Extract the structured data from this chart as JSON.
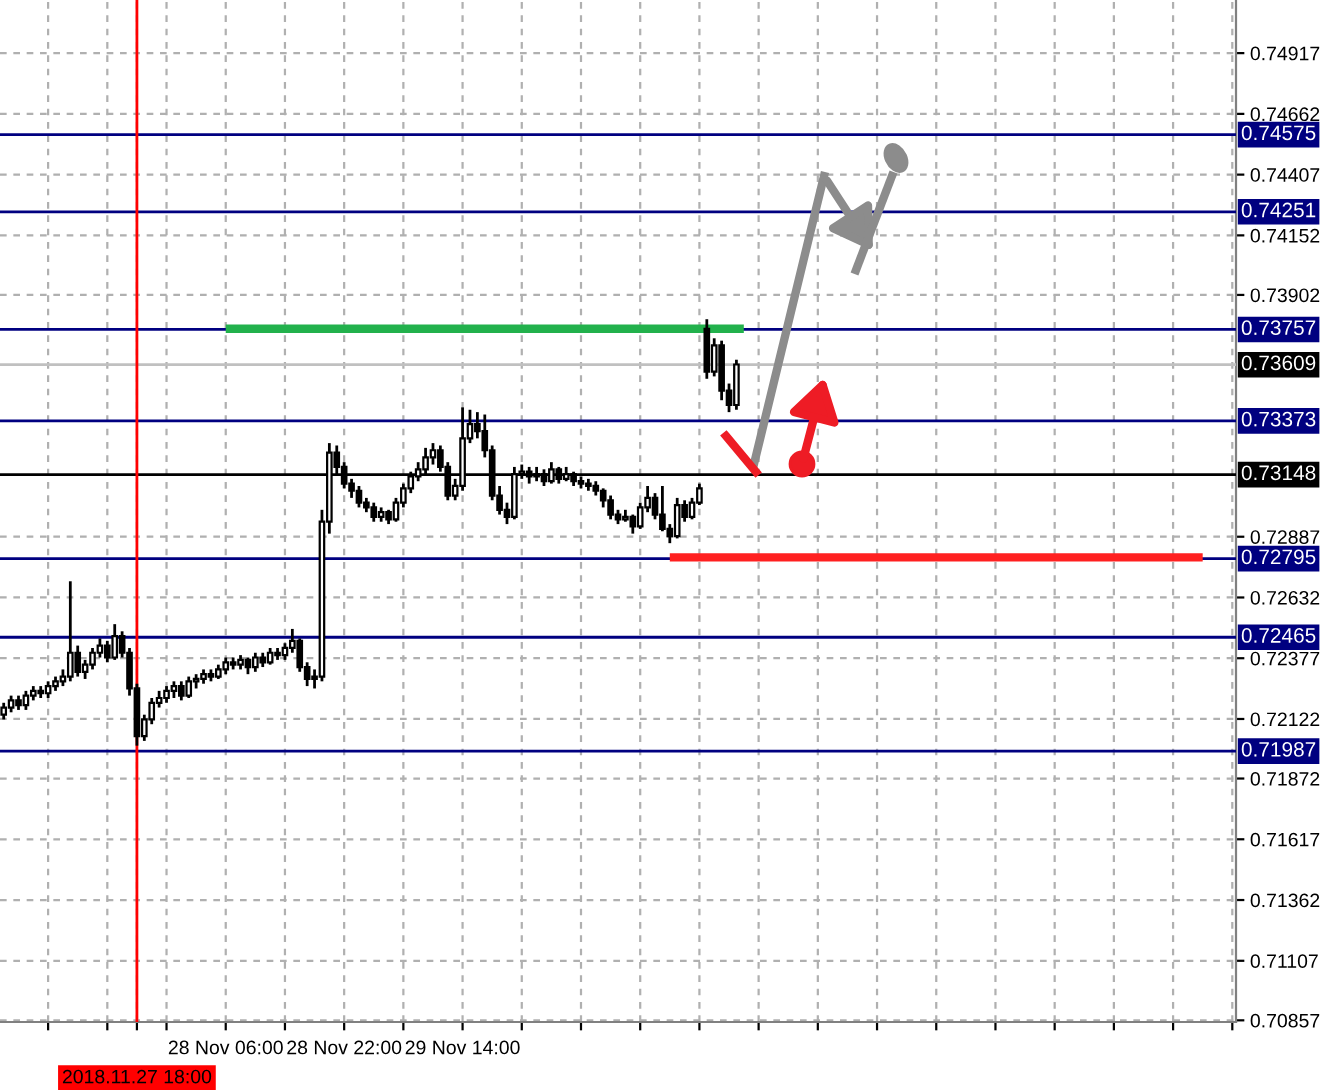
{
  "chart_data": {
    "type": "candlestick",
    "categories": [
      null,
      null,
      null,
      null,
      null,
      null,
      null,
      null,
      null,
      null,
      null,
      null,
      null,
      null,
      null,
      null,
      null,
      null,
      "2018.11.27 18:00",
      null,
      null,
      null,
      null,
      null,
      null,
      null,
      null,
      null,
      null,
      null,
      "28 Nov 06:00",
      null,
      null,
      null,
      null,
      null,
      null,
      null,
      null,
      null,
      null,
      null,
      null,
      null,
      null,
      null,
      "28 Nov 22:00",
      null,
      null,
      null,
      null,
      null,
      null,
      null,
      null,
      null,
      null,
      null,
      null,
      null,
      null,
      null,
      "29 Nov 14:00",
      null,
      null,
      null,
      null,
      null,
      null,
      null,
      null,
      null,
      null,
      null,
      null,
      null,
      null,
      null,
      null,
      null,
      null,
      null,
      null,
      null,
      null,
      null,
      null,
      null,
      null,
      null,
      null,
      null,
      null,
      null,
      null,
      null,
      null,
      null,
      null,
      null,
      null,
      null,
      null,
      null,
      null,
      null,
      null,
      null,
      null,
      null,
      null,
      null,
      null,
      null,
      null,
      null,
      null,
      null,
      null,
      null,
      null,
      null,
      null,
      null,
      null,
      null,
      null,
      null,
      null,
      null,
      null,
      null,
      null,
      null,
      null,
      null,
      null,
      null,
      null,
      null,
      null,
      null,
      null,
      null,
      null,
      null,
      null,
      null,
      null,
      null,
      null,
      null,
      null,
      null,
      null,
      null,
      null,
      null,
      null,
      null,
      null,
      null,
      null,
      null,
      null,
      null,
      null
    ],
    "ohlc": [
      [
        0.7214,
        0.7219,
        0.7212,
        0.7217
      ],
      [
        0.7217,
        0.7222,
        0.7215,
        0.722
      ],
      [
        0.722,
        0.7222,
        0.7216,
        0.7218
      ],
      [
        0.7218,
        0.7224,
        0.7216,
        0.7222
      ],
      [
        0.7222,
        0.7226,
        0.722,
        0.7224
      ],
      [
        0.7224,
        0.7226,
        0.7221,
        0.7223
      ],
      [
        0.7223,
        0.7228,
        0.7221,
        0.7226
      ],
      [
        0.7226,
        0.723,
        0.7224,
        0.7228
      ],
      [
        0.7228,
        0.7233,
        0.7226,
        0.723
      ],
      [
        0.723,
        0.727,
        0.7228,
        0.724
      ],
      [
        0.724,
        0.7243,
        0.723,
        0.7232
      ],
      [
        0.7232,
        0.7237,
        0.7229,
        0.7235
      ],
      [
        0.7235,
        0.7242,
        0.7233,
        0.724
      ],
      [
        0.724,
        0.7246,
        0.7238,
        0.7243
      ],
      [
        0.7243,
        0.7245,
        0.7236,
        0.7238
      ],
      [
        0.7238,
        0.7252,
        0.7237,
        0.7247
      ],
      [
        0.7247,
        0.7249,
        0.7238,
        0.724
      ],
      [
        0.724,
        0.7242,
        0.7222,
        0.7225
      ],
      [
        0.7225,
        0.7227,
        0.7201,
        0.7205
      ],
      [
        0.7205,
        0.7214,
        0.7203,
        0.7212
      ],
      [
        0.7212,
        0.7221,
        0.721,
        0.7219
      ],
      [
        0.7219,
        0.7224,
        0.7217,
        0.7221
      ],
      [
        0.7221,
        0.7226,
        0.7219,
        0.7224
      ],
      [
        0.7224,
        0.7228,
        0.7221,
        0.7226
      ],
      [
        0.7226,
        0.7228,
        0.722,
        0.7222
      ],
      [
        0.7222,
        0.723,
        0.7221,
        0.7228
      ],
      [
        0.7228,
        0.7231,
        0.7225,
        0.7229
      ],
      [
        0.7229,
        0.7233,
        0.7227,
        0.7231
      ],
      [
        0.7231,
        0.7233,
        0.7228,
        0.723
      ],
      [
        0.723,
        0.7235,
        0.7229,
        0.7233
      ],
      [
        0.7233,
        0.7238,
        0.7231,
        0.7236
      ],
      [
        0.7236,
        0.7238,
        0.7233,
        0.7235
      ],
      [
        0.7235,
        0.7239,
        0.7233,
        0.7237
      ],
      [
        0.7237,
        0.7238,
        0.7231,
        0.7234
      ],
      [
        0.7234,
        0.724,
        0.7232,
        0.7238
      ],
      [
        0.7238,
        0.724,
        0.7234,
        0.7236
      ],
      [
        0.7236,
        0.7242,
        0.7235,
        0.724
      ],
      [
        0.724,
        0.7242,
        0.7237,
        0.7239
      ],
      [
        0.7239,
        0.7244,
        0.7237,
        0.7242
      ],
      [
        0.7242,
        0.725,
        0.724,
        0.7245
      ],
      [
        0.7245,
        0.7246,
        0.7232,
        0.7234
      ],
      [
        0.7234,
        0.7236,
        0.7226,
        0.7229
      ],
      [
        0.7229,
        0.7233,
        0.7225,
        0.723
      ],
      [
        0.723,
        0.73,
        0.7228,
        0.7295
      ],
      [
        0.7295,
        0.7328,
        0.729,
        0.7324
      ],
      [
        0.7324,
        0.7327,
        0.7315,
        0.7318
      ],
      [
        0.7318,
        0.732,
        0.7309,
        0.7311
      ],
      [
        0.7311,
        0.7313,
        0.7305,
        0.7308
      ],
      [
        0.7308,
        0.731,
        0.7301,
        0.7303
      ],
      [
        0.7303,
        0.7305,
        0.7299,
        0.7301
      ],
      [
        0.7301,
        0.7303,
        0.7295,
        0.7297
      ],
      [
        0.7297,
        0.7301,
        0.7295,
        0.7299
      ],
      [
        0.7299,
        0.73,
        0.7294,
        0.7296
      ],
      [
        0.7296,
        0.7305,
        0.7295,
        0.7303
      ],
      [
        0.7303,
        0.7311,
        0.7301,
        0.7309
      ],
      [
        0.7309,
        0.7316,
        0.7307,
        0.7314
      ],
      [
        0.7314,
        0.732,
        0.7312,
        0.7317
      ],
      [
        0.7317,
        0.7326,
        0.7315,
        0.7322
      ],
      [
        0.7322,
        0.7328,
        0.7319,
        0.7325
      ],
      [
        0.7325,
        0.7327,
        0.7316,
        0.7318
      ],
      [
        0.7318,
        0.732,
        0.7304,
        0.7306
      ],
      [
        0.7306,
        0.7313,
        0.7304,
        0.731
      ],
      [
        0.731,
        0.7343,
        0.7308,
        0.733
      ],
      [
        0.733,
        0.7342,
        0.7328,
        0.7336
      ],
      [
        0.7336,
        0.7341,
        0.733,
        0.7333
      ],
      [
        0.7333,
        0.734,
        0.7322,
        0.7325
      ],
      [
        0.7325,
        0.7327,
        0.7304,
        0.7306
      ],
      [
        0.7306,
        0.731,
        0.7298,
        0.73
      ],
      [
        0.73,
        0.7303,
        0.7294,
        0.7297
      ],
      [
        0.7297,
        0.7318,
        0.7296,
        0.7315
      ],
      [
        0.7315,
        0.7319,
        0.7313,
        0.7316
      ],
      [
        0.7316,
        0.7318,
        0.7311,
        0.7314
      ],
      [
        0.7314,
        0.7318,
        0.7312,
        0.7315
      ],
      [
        0.7315,
        0.7317,
        0.731,
        0.7312
      ],
      [
        0.7312,
        0.732,
        0.7311,
        0.7317
      ],
      [
        0.7317,
        0.7318,
        0.7311,
        0.7313
      ],
      [
        0.7313,
        0.7318,
        0.7312,
        0.7315
      ],
      [
        0.7315,
        0.7316,
        0.731,
        0.7312
      ],
      [
        0.7312,
        0.7314,
        0.7309,
        0.7311
      ],
      [
        0.7311,
        0.7313,
        0.7308,
        0.731
      ],
      [
        0.731,
        0.7312,
        0.7306,
        0.7308
      ],
      [
        0.7308,
        0.7309,
        0.7301,
        0.7304
      ],
      [
        0.7304,
        0.7306,
        0.7296,
        0.7298
      ],
      [
        0.7298,
        0.73,
        0.7294,
        0.7296
      ],
      [
        0.7296,
        0.73,
        0.7295,
        0.7297
      ],
      [
        0.7297,
        0.7298,
        0.729,
        0.7293
      ],
      [
        0.7293,
        0.7303,
        0.7292,
        0.7301
      ],
      [
        0.7301,
        0.731,
        0.7299,
        0.7305
      ],
      [
        0.7305,
        0.7307,
        0.7296,
        0.7298
      ],
      [
        0.7298,
        0.731,
        0.7291,
        0.7292
      ],
      [
        0.7292,
        0.7294,
        0.7286,
        0.7289
      ],
      [
        0.7289,
        0.7305,
        0.7288,
        0.7302
      ],
      [
        0.7302,
        0.7304,
        0.7295,
        0.7297
      ],
      [
        0.7297,
        0.7305,
        0.7296,
        0.7303
      ],
      [
        0.7303,
        0.7311,
        0.7302,
        0.7309
      ],
      [
        0.7376,
        0.738,
        0.7355,
        0.7358
      ],
      [
        0.7358,
        0.7372,
        0.7356,
        0.7369
      ],
      [
        0.7369,
        0.7371,
        0.7346,
        0.735
      ],
      [
        0.735,
        0.7353,
        0.7341,
        0.7344
      ],
      [
        0.7344,
        0.7363,
        0.7342,
        0.7361
      ],
      null,
      null,
      null,
      null,
      null,
      null,
      null,
      null,
      null,
      null,
      null,
      null,
      null,
      null,
      null,
      null,
      null,
      null,
      null,
      null,
      null,
      null,
      null,
      null,
      null,
      null,
      null,
      null,
      null,
      null,
      null,
      null,
      null,
      null,
      null,
      null,
      null,
      null,
      null,
      null,
      null,
      null,
      null,
      null,
      null,
      null,
      null,
      null,
      null,
      null,
      null,
      null,
      null,
      null,
      null,
      null,
      null,
      null,
      null,
      null,
      null,
      null,
      null,
      null,
      null,
      null,
      null
    ],
    "series": [
      {
        "type": "line",
        "color": "#22b14c",
        "values": [
          null,
          null,
          null,
          null,
          null,
          null,
          null,
          null,
          null,
          null,
          null,
          null,
          null,
          null,
          null,
          null,
          null,
          null,
          null,
          null,
          null,
          null,
          null,
          null,
          null,
          null,
          null,
          null,
          null,
          null,
          0.7376,
          0.7376,
          0.7376,
          0.7376,
          0.7376,
          0.7376,
          0.7376,
          0.7376,
          0.7376,
          0.7376,
          0.7376,
          0.7376,
          0.7376,
          0.7376,
          0.7376,
          0.7376,
          0.7376,
          0.7376,
          0.7376,
          0.7376,
          0.7376,
          0.7376,
          0.7376,
          0.7376,
          0.7376,
          0.7376,
          0.7376,
          0.7376,
          0.7376,
          0.7376,
          0.7376,
          0.7376,
          0.7376,
          0.7376,
          0.7376,
          0.7376,
          0.7376,
          0.7376,
          0.7376,
          0.7376,
          0.7376,
          0.7376,
          0.7376,
          0.7376,
          0.7376,
          0.7376,
          0.7376,
          0.7376,
          0.7376,
          0.7376,
          0.7376,
          0.7376,
          0.7376,
          0.7376,
          0.7376,
          0.7376,
          0.7376,
          0.7376,
          0.7376,
          0.7376,
          0.7376,
          0.7376,
          0.7376,
          0.7376,
          0.7376,
          0.7376,
          0.7376,
          0.7376,
          0.7376,
          0.7376,
          0.7376,
          null,
          null,
          null,
          null,
          null,
          null,
          null,
          null,
          null,
          null,
          null,
          null,
          null,
          null,
          null,
          null,
          null,
          null,
          null,
          null,
          null,
          null,
          null,
          null,
          null,
          null,
          null,
          null,
          null,
          null,
          null,
          null,
          null,
          null,
          null,
          null,
          null,
          null,
          null,
          null,
          null,
          null,
          null,
          null,
          null,
          null,
          null,
          null,
          null,
          null,
          null,
          null,
          null,
          null,
          null,
          null,
          null,
          null,
          null,
          null,
          null,
          null,
          null,
          null,
          null,
          null
        ]
      },
      {
        "type": "line",
        "color": "#ff2020",
        "values": [
          null,
          null,
          null,
          null,
          null,
          null,
          null,
          null,
          null,
          null,
          null,
          null,
          null,
          null,
          null,
          null,
          null,
          null,
          null,
          null,
          null,
          null,
          null,
          null,
          null,
          null,
          null,
          null,
          null,
          null,
          null,
          null,
          null,
          null,
          null,
          null,
          null,
          null,
          null,
          null,
          null,
          null,
          null,
          null,
          null,
          null,
          null,
          null,
          null,
          null,
          null,
          null,
          null,
          null,
          null,
          null,
          null,
          null,
          null,
          null,
          null,
          null,
          null,
          null,
          null,
          null,
          null,
          null,
          null,
          null,
          null,
          null,
          null,
          null,
          null,
          null,
          null,
          null,
          null,
          null,
          null,
          null,
          null,
          null,
          null,
          null,
          null,
          null,
          null,
          null,
          0.728,
          0.728,
          0.728,
          0.728,
          0.728,
          0.728,
          0.728,
          0.728,
          0.728,
          0.728,
          0.728,
          0.728,
          0.728,
          0.728,
          0.728,
          0.728,
          0.728,
          0.728,
          0.728,
          0.728,
          0.728,
          0.728,
          0.728,
          0.728,
          0.728,
          0.728,
          0.728,
          0.728,
          0.728,
          0.728,
          0.728,
          0.728,
          0.728,
          0.728,
          0.728,
          0.728,
          0.728,
          0.728,
          0.728,
          0.728,
          0.728,
          0.728,
          0.728,
          0.728,
          0.728,
          0.728,
          0.728,
          0.728,
          0.728,
          0.728,
          0.728,
          0.728,
          0.728,
          0.728,
          0.728,
          0.728,
          0.728,
          0.728,
          0.728,
          0.728,
          0.728,
          0.728,
          0.728,
          0.728,
          0.728,
          0.728,
          0.728,
          0.728,
          0.728,
          0.728,
          0.728,
          0.728,
          0.728,
          null,
          null,
          null,
          null
        ]
      }
    ],
    "ylim": [
      0.7085,
      0.7514
    ],
    "yticks": [
      0.74917,
      0.74662,
      0.74407,
      0.74152,
      0.73902,
      0.72887,
      0.72632,
      0.72377,
      0.72122,
      0.71872,
      0.71617,
      0.71362,
      0.71107,
      0.70857
    ],
    "grid": true,
    "ref_lines": [
      {
        "axis": "y",
        "value": 0.74575,
        "label": "0.74575",
        "color": "#000080"
      },
      {
        "axis": "y",
        "value": 0.74251,
        "label": "0.74251",
        "color": "#000080"
      },
      {
        "axis": "y",
        "value": 0.73757,
        "label": "0.73757",
        "color": "#000080"
      },
      {
        "axis": "y",
        "value": 0.73609,
        "label": "0.73609",
        "color": "#c0c0c0"
      },
      {
        "axis": "y",
        "value": 0.73373,
        "label": "0.73373",
        "color": "#000080"
      },
      {
        "axis": "y",
        "value": 0.73148,
        "label": "0.73148",
        "color": "#000000"
      },
      {
        "axis": "y",
        "value": 0.72795,
        "label": "0.72795",
        "color": "#000080"
      },
      {
        "axis": "y",
        "value": 0.72465,
        "label": "0.72465",
        "color": "#000080"
      },
      {
        "axis": "y",
        "value": 0.71987,
        "label": "0.71987",
        "color": "#000080"
      },
      {
        "axis": "x",
        "value": "2018.11.27 18:00",
        "color": "#ff0000"
      }
    ]
  }
}
